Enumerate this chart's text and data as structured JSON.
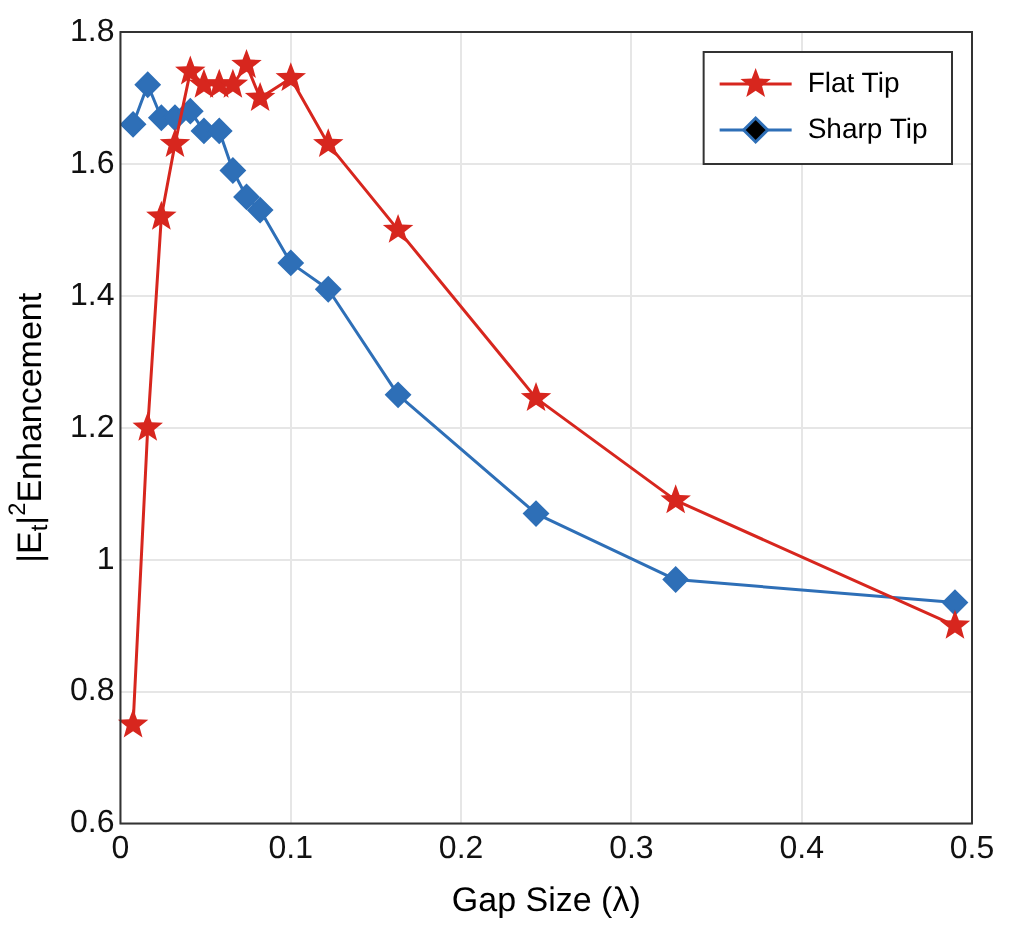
{
  "chart_data": {
    "type": "line",
    "xlabel": "Gap Size (λ)",
    "ylabel": "|E$_{t}$|$^{2}$Enhancement",
    "xlim": [
      0,
      0.5
    ],
    "xticks": [
      0,
      0.1,
      0.2,
      0.3,
      0.4,
      0.5
    ],
    "ylim": [
      0.6,
      1.8
    ],
    "yticks": [
      0.6,
      0.8,
      1,
      1.2,
      1.4,
      1.6,
      1.8
    ],
    "grid": true,
    "legend": "top right",
    "series": [
      {
        "name": "Flat Tip",
        "color": "#d7261e",
        "marker": "star",
        "x": [
          0.0074,
          0.016,
          0.024,
          0.032,
          0.041,
          0.049,
          0.058,
          0.066,
          0.074,
          0.082,
          0.1,
          0.122,
          0.163,
          0.244,
          0.326,
          0.49
        ],
        "values": [
          0.75,
          1.2,
          1.52,
          1.63,
          1.74,
          1.72,
          1.72,
          1.72,
          1.75,
          1.7,
          1.73,
          1.63,
          1.5,
          1.245,
          1.09,
          0.9
        ]
      },
      {
        "name": "Sharp Tip",
        "color": "#2e6fb7",
        "marker": "diamond",
        "x": [
          0.0074,
          0.016,
          0.024,
          0.032,
          0.041,
          0.049,
          0.058,
          0.066,
          0.074,
          0.082,
          0.1,
          0.122,
          0.163,
          0.244,
          0.326,
          0.49
        ],
        "values": [
          1.66,
          1.72,
          1.67,
          1.67,
          1.68,
          1.65,
          1.65,
          1.59,
          1.55,
          1.53,
          1.45,
          1.41,
          1.25,
          1.07,
          0.97,
          0.935
        ]
      }
    ]
  }
}
